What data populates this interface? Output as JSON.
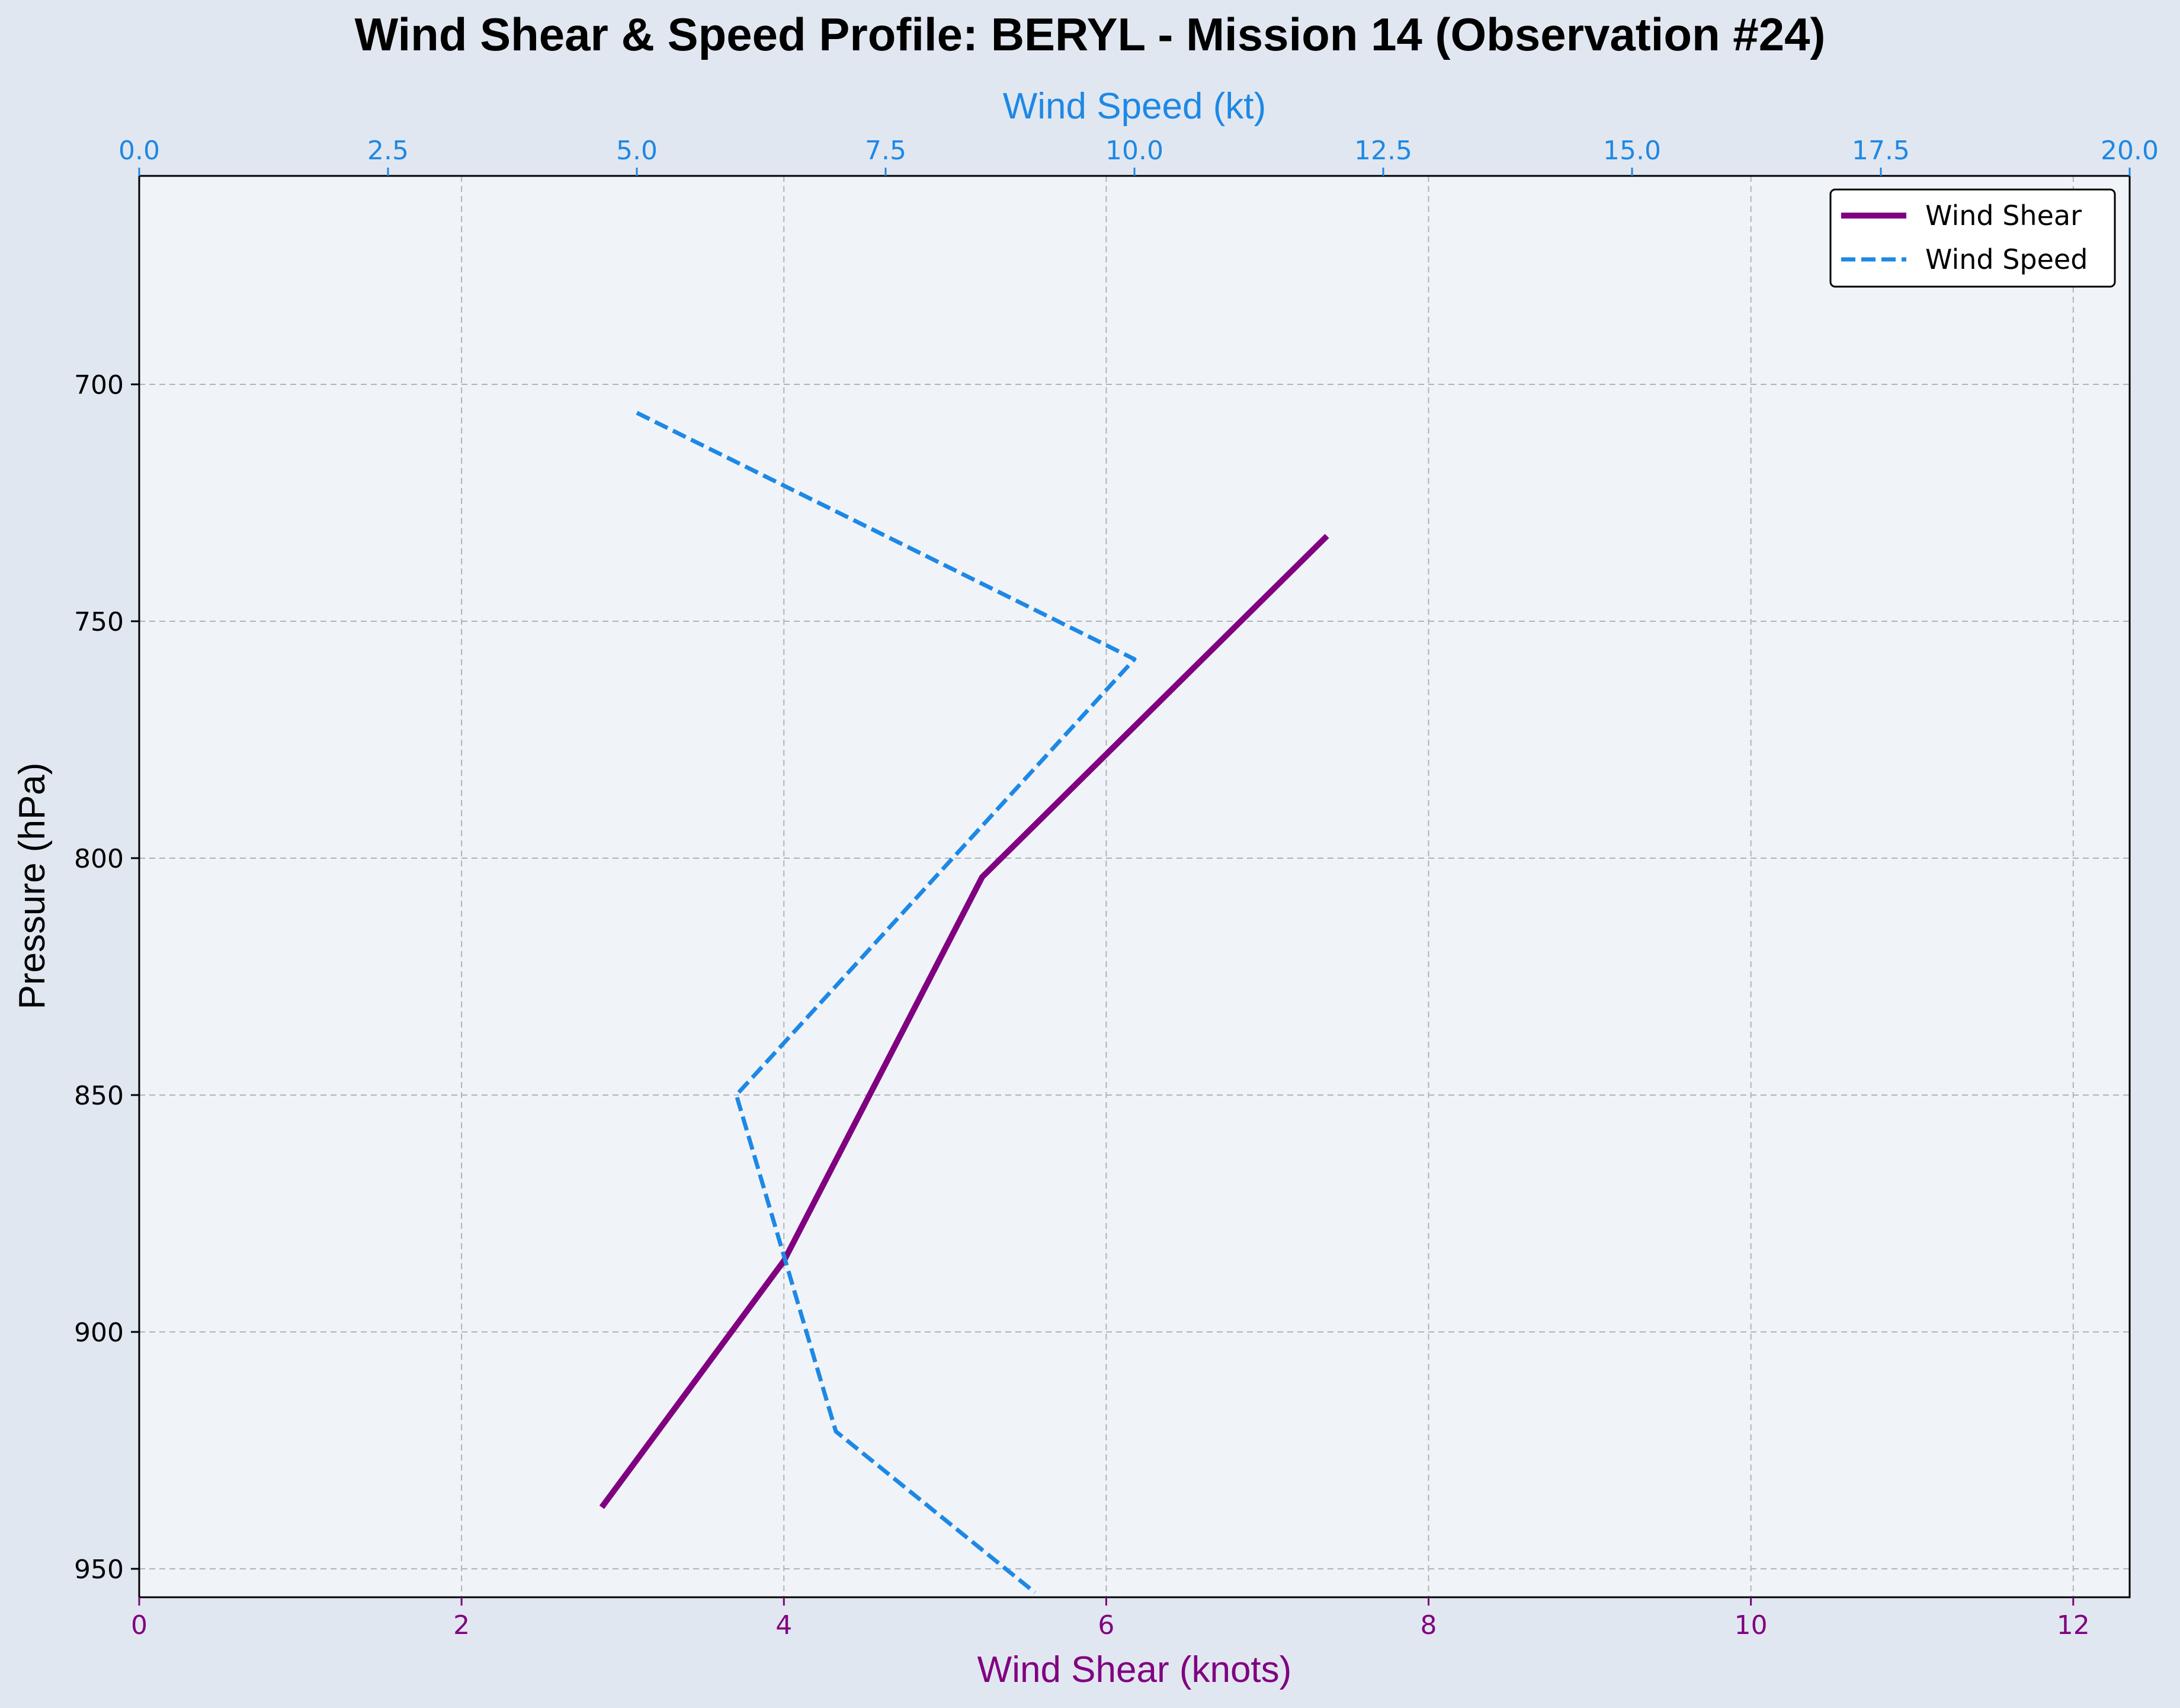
{
  "chart_data": {
    "type": "line",
    "title": "Wind Shear & Speed Profile: BERYL - Mission 14 (Observation #24)",
    "ylabel": "Pressure (hPa)",
    "xlabel_bottom": "Wind Shear (knots)",
    "xlabel_top": "Wind Speed (kt)",
    "ylim": [
      956,
      656
    ],
    "yticks": [
      700,
      750,
      800,
      850,
      900,
      950
    ],
    "xlim_bottom": [
      0,
      12.35
    ],
    "xticks_bottom": [
      0,
      2,
      4,
      6,
      8,
      10,
      12
    ],
    "xlim_top": [
      0,
      20
    ],
    "xticks_top": [
      "0.0",
      "2.5",
      "5.0",
      "7.5",
      "10.0",
      "12.5",
      "15.0",
      "17.5",
      "20.0"
    ],
    "grid": true,
    "legend_position": "top-right",
    "series": [
      {
        "name": "Wind Shear",
        "axis": "bottom",
        "color": "#800080",
        "style": "solid",
        "points": [
          {
            "x": 2.87,
            "y": 937
          },
          {
            "x": 4.0,
            "y": 885
          },
          {
            "x": 5.23,
            "y": 804
          },
          {
            "x": 7.37,
            "y": 732
          }
        ]
      },
      {
        "name": "Wind Speed",
        "axis": "top",
        "color": "#1e88e5",
        "style": "dashed",
        "points": [
          {
            "x": 5.0,
            "y": 706
          },
          {
            "x": 10.0,
            "y": 758
          },
          {
            "x": 6.0,
            "y": 850
          },
          {
            "x": 7.0,
            "y": 921
          },
          {
            "x": 9.0,
            "y": 955
          }
        ]
      }
    ]
  },
  "colors": {
    "page_bg": "#e1e7f0",
    "plot_bg": "#f0f4f9",
    "grid": "#b0b4b8",
    "shear_axis": "#800080",
    "speed_axis": "#1e88e5"
  }
}
